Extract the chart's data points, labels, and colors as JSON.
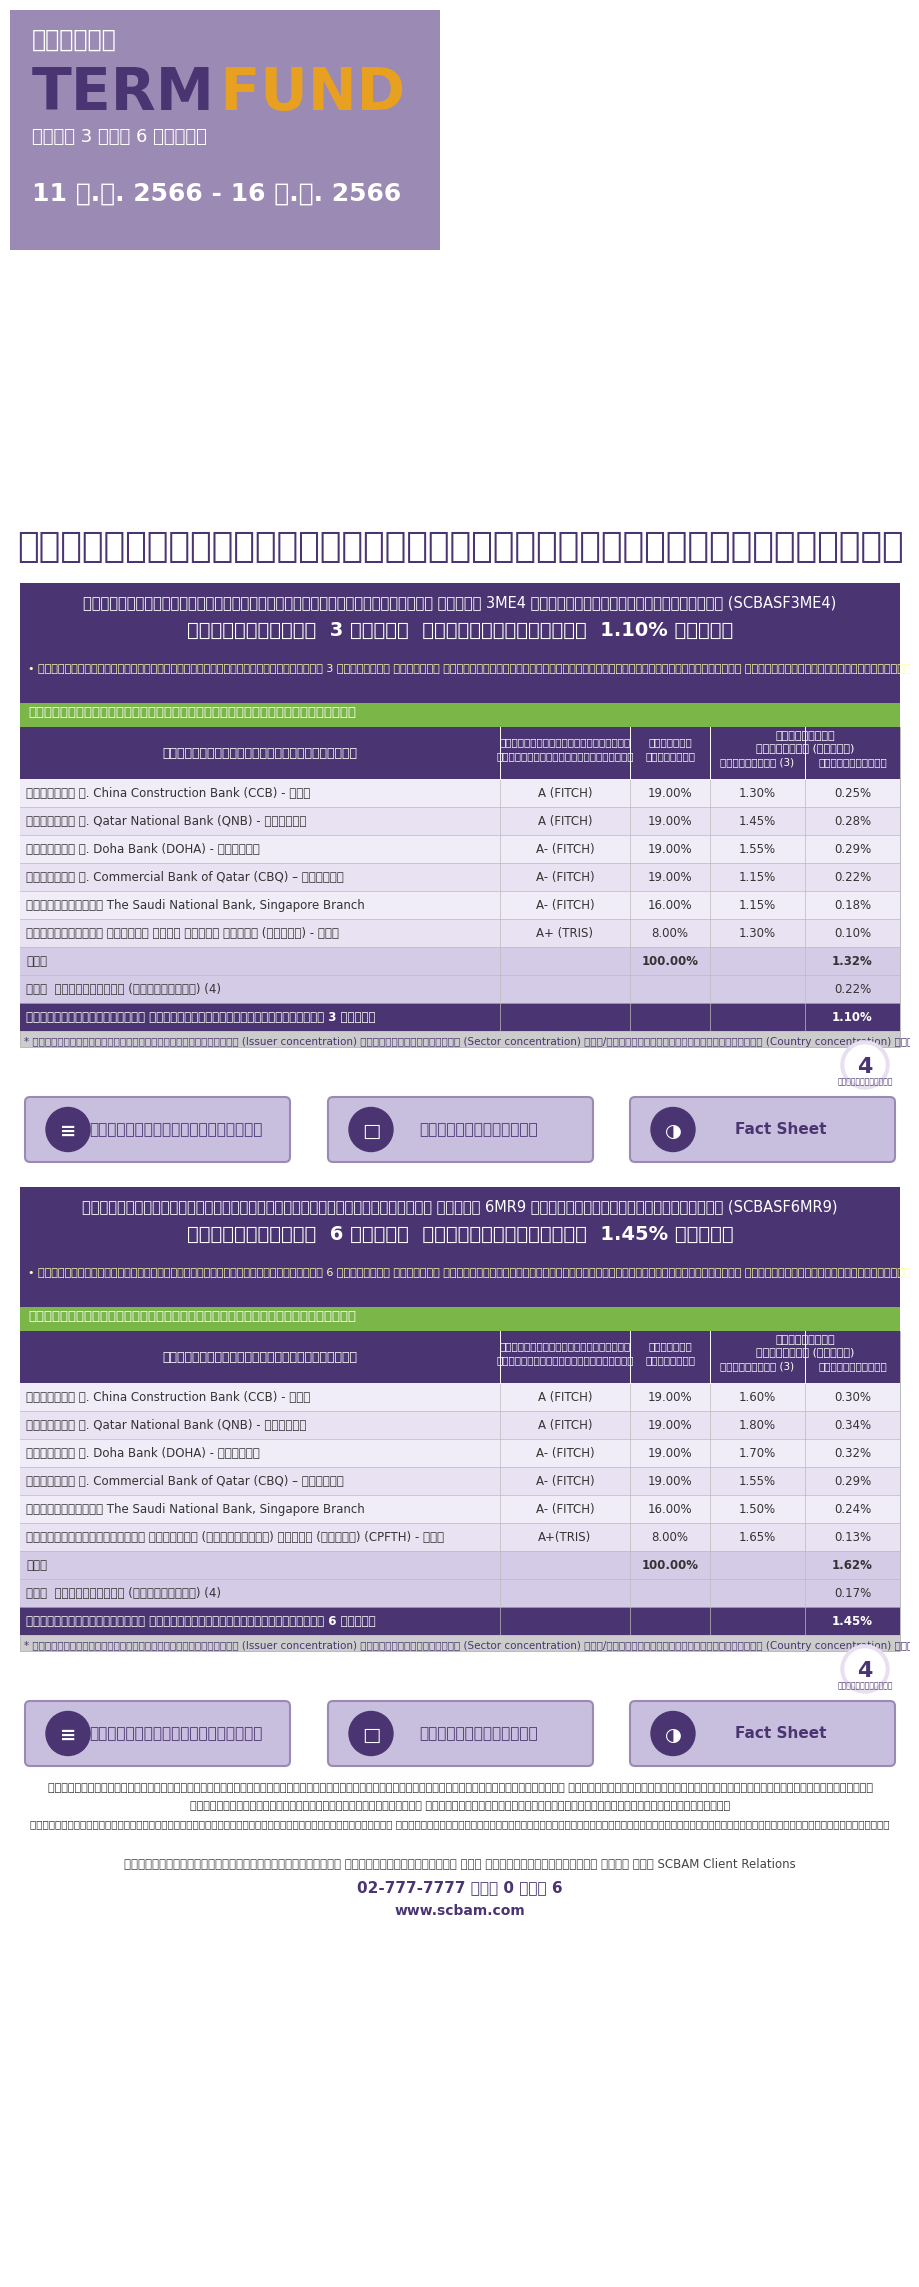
{
  "bg_color": "#ffffff",
  "header_bg": "#9b8bb4",
  "header_text1": "กองทุน",
  "header_text2_part1": "TERM",
  "header_text2_part2": " FUND",
  "header_text3": "อายุ 3 และ 6 เดือน",
  "header_date": "11 ม.ค. 2566 - 16 ม.ค. 2566",
  "main_title": "สร้างโอกาสรับผลตอบแทนจากตราสารหนี้ทั่วโลก",
  "fund1_bg": "#4a3572",
  "fund1_title_line1": "กองทุนเปิดไทยพาณิชย์ตราสารหนี้ต่างประเทศ เอเอส 3ME4 ห้ามขายผู้ลงทุนรายย่อย (SCBASF3ME4)",
  "fund1_title_line2": "ลงทุนประมาณ  3 เดือน  ผลตอบแทนประมาณ  1.10% ต่อปี",
  "fund1_note": "• ผู้ลงทุนไม่สามารถขายคืนหน่วยลงทุนในช่วงเวลา 3 เดือนได้ ดังนั้น หากมีปัจจัยลบที่ส่งผลกระทบต่อการลงทุนดังกล่าว ผู้ลงทุนอาจสูญเสียเงินลงทุนจำนวนมาก",
  "fund1_table_header_bg": "#4a3572",
  "fund1_table_rows": [
    [
      "เงินฝาก ธ. China Construction Bank (CCB) - จีน",
      "A (FITCH)",
      "19.00%",
      "1.30%",
      "0.25%"
    ],
    [
      "เงินฝาก ธ. Qatar National Bank (QNB) - กาตาร์",
      "A (FITCH)",
      "19.00%",
      "1.45%",
      "0.28%"
    ],
    [
      "เงินฝาก ธ. Doha Bank (DOHA) - กาตาร์",
      "A- (FITCH)",
      "19.00%",
      "1.55%",
      "0.29%"
    ],
    [
      "เงินฝาก ธ. Commercial Bank of Qatar (CBQ) – กาตาร์",
      "A- (FITCH)",
      "19.00%",
      "1.15%",
      "0.22%"
    ],
    [
      "บัตรเงินฝาก The Saudi National Bank, Singapore Branch",
      "A- (FITCH)",
      "16.00%",
      "1.15%",
      "0.18%"
    ],
    [
      "ตั๋วแลกเงิน บริษัท ซีพี ออลล์ จำกัด (มหาชน) - ไทย",
      "A+ (TRIS)",
      "8.00%",
      "1.30%",
      "0.10%"
    ],
    [
      "รวม",
      "",
      "100.00%",
      "",
      "1.32%"
    ],
    [
      "หัก  ค่าใช้จ่าย (โดยประมาณ) (4)",
      "",
      "",
      "",
      "0.22%"
    ],
    [
      "ผลตอบแทนโดยประมาณ ตามระยะเวลาการลงทุนประมาณ 3 เดือน",
      "",
      "",
      "",
      "1.10%"
    ]
  ],
  "fund1_footnote": "* กองทุนมีการลงทุนกระจุกตัวในผู้ออก (Issuer concentration) ในหมวดอุตสาหกรรม (Sector concentration) และ/หรือในประเทศใดประเทศหนึ่ง (Country concentration) ทั้งนี้ การกระจุกตัวของพอร์ตการลงทุนจริงอาจเปลี่ยนแปลงได้ เพื่อรักษาผลประโยชน์ของผู้ลงทุนเป็นสำคัญ",
  "fund2_bg": "#4a3572",
  "fund2_title_line1": "กองทุนเปิดไทยพาณิชย์ตราสารหนี้ต่างประเทศ เอเอส 6MR9 ห้ามขายผู้ลงทุนรายย่อย (SCBASF6MR9)",
  "fund2_title_line2": "ลงทุนประมาณ  6 เดือน  ผลตอบแทนประมาณ  1.45% ต่อปี",
  "fund2_note": "• ผู้ลงทุนไม่สามารถขายคืนหน่วยลงทุนในช่วงเวลา 6 เดือนได้ ดังนั้น หากมีปัจจัยลบที่ส่งผลกระทบต่อการลงทุนดังกล่าว ผู้ลงทุนอาจสูญเสียเงินลงทุนจำนวนมาก",
  "fund2_table_rows": [
    [
      "เงินฝาก ธ. China Construction Bank (CCB) - จีน",
      "A (FITCH)",
      "19.00%",
      "1.60%",
      "0.30%"
    ],
    [
      "เงินฝาก ธ. Qatar National Bank (QNB) - กาตาร์",
      "A (FITCH)",
      "19.00%",
      "1.80%",
      "0.34%"
    ],
    [
      "เงินฝาก ธ. Doha Bank (DOHA) - กาตาร์",
      "A- (FITCH)",
      "19.00%",
      "1.70%",
      "0.32%"
    ],
    [
      "เงินฝาก ธ. Commercial Bank of Qatar (CBQ) – กาตาร์",
      "A- (FITCH)",
      "19.00%",
      "1.55%",
      "0.29%"
    ],
    [
      "บัตรเงินฝาก The Saudi National Bank, Singapore Branch",
      "A- (FITCH)",
      "16.00%",
      "1.50%",
      "0.24%"
    ],
    [
      "ตั๋วแลกเงินบริษัท ซีพีเอฟ (ประเทศไทย) จำกัด (มหาชน) (CPFTH) - ไทย",
      "A+(TRIS)",
      "8.00%",
      "1.65%",
      "0.13%"
    ],
    [
      "รวม",
      "",
      "100.00%",
      "",
      "1.62%"
    ],
    [
      "หัก  ค่าใช้จ่าย (โดยประมาณ) (4)",
      "",
      "",
      "",
      "0.17%"
    ],
    [
      "ผลตอบแทนโดยประมาณ ตามระยะเวลาการลงทุนประมาณ 6 เดือน",
      "",
      "",
      "",
      "1.45%"
    ]
  ],
  "fund2_footnote": "* กองทุนมีการลงทุนกระจุกตัวในผู้ออก (Issuer concentration) ในหมวดอุตสาหกรรม (Sector concentration) และ/หรือในประเทศใดประเทศหนึ่ง (Country concentration) ทั้งนี้ การกระจุกตัวของพอร์ตการลงทุนจริงอาจเปลี่ยนแปลงได้ เพื่อรักษาผลประโยชน์ของผู้ลงทุนเป็นสำคัญ",
  "table_green_header": "กองทุนรวมที่เสนอขายเฉพาะผู้มีเงินลงทุนสูง",
  "table_col_h1": "ตราสารที่กองทุนคาดว่าลงทุน",
  "table_col_h2a": "อันดับความน่าเชื่อถือ",
  "table_col_h2b": "ระยะยาวของผู้ออกตราสาร",
  "table_col_h3a": "สัดส่วน",
  "table_col_h3b": "การลงทุน",
  "table_col_h4": "ประมาณการ\nผลตอบแทน (ต่อปี)",
  "table_col_h4a": "จากตราสาร (3)",
  "table_col_h4b": "จากการลงทุน",
  "button_texts": [
    "รายละเอียดเพิ่มเติม",
    "หนังสือชี้ชวน",
    "Fact Sheet"
  ],
  "disc_line1": "หากไม่สามารถลงทุนได้ตามเป้าหมายที่กำหนดอาจเนื่องจากสภาวะตลาดมีการเปลี่ยนแปลงไป ผู้ลงทุนอาจไม่ได้รับผลตอบแทนตามอัตราที่แจ้งไว้",
  "disc_line2": "ผู้ลงทุนควรทำความเข้าใจลักษณะสินค้า เงื่อนไขผลตอบแทนและความเสี่ยงก่อนตัดสินใจลงทุน",
  "disc_line3": "และสามารถขอรับหนังสือชี้ชวนส่วนสรุปข้อมูลสำคัญของกองทุนรวม โดยไม่ให้ทำองรอรับหนังสือชี้ชวนส่วนสรุปข้อมูลสำคัญก่อนการลงทุนอย่างน้อยวันทำการ",
  "contact_line1": "สอบถามรายละเอียดเพิ่มเติมได้ที่ ธนาคารไทยพาณิชย์ และ ผู้แนะนำการลงทุน หรือ โทร SCBAM Client Relations",
  "contact_line2": "02-777-7777 ต่อ 0 โดย 6",
  "contact_line3": "www.scbam.com",
  "purple_light": "#9b8bb4",
  "purple_dark": "#4a3572",
  "green_bar": "#7ab648",
  "row_alt1": "#f0ecf8",
  "row_alt2": "#e8e2f2",
  "row_subtotal": "#d4cce6",
  "row_total_bg": "#4a3572"
}
